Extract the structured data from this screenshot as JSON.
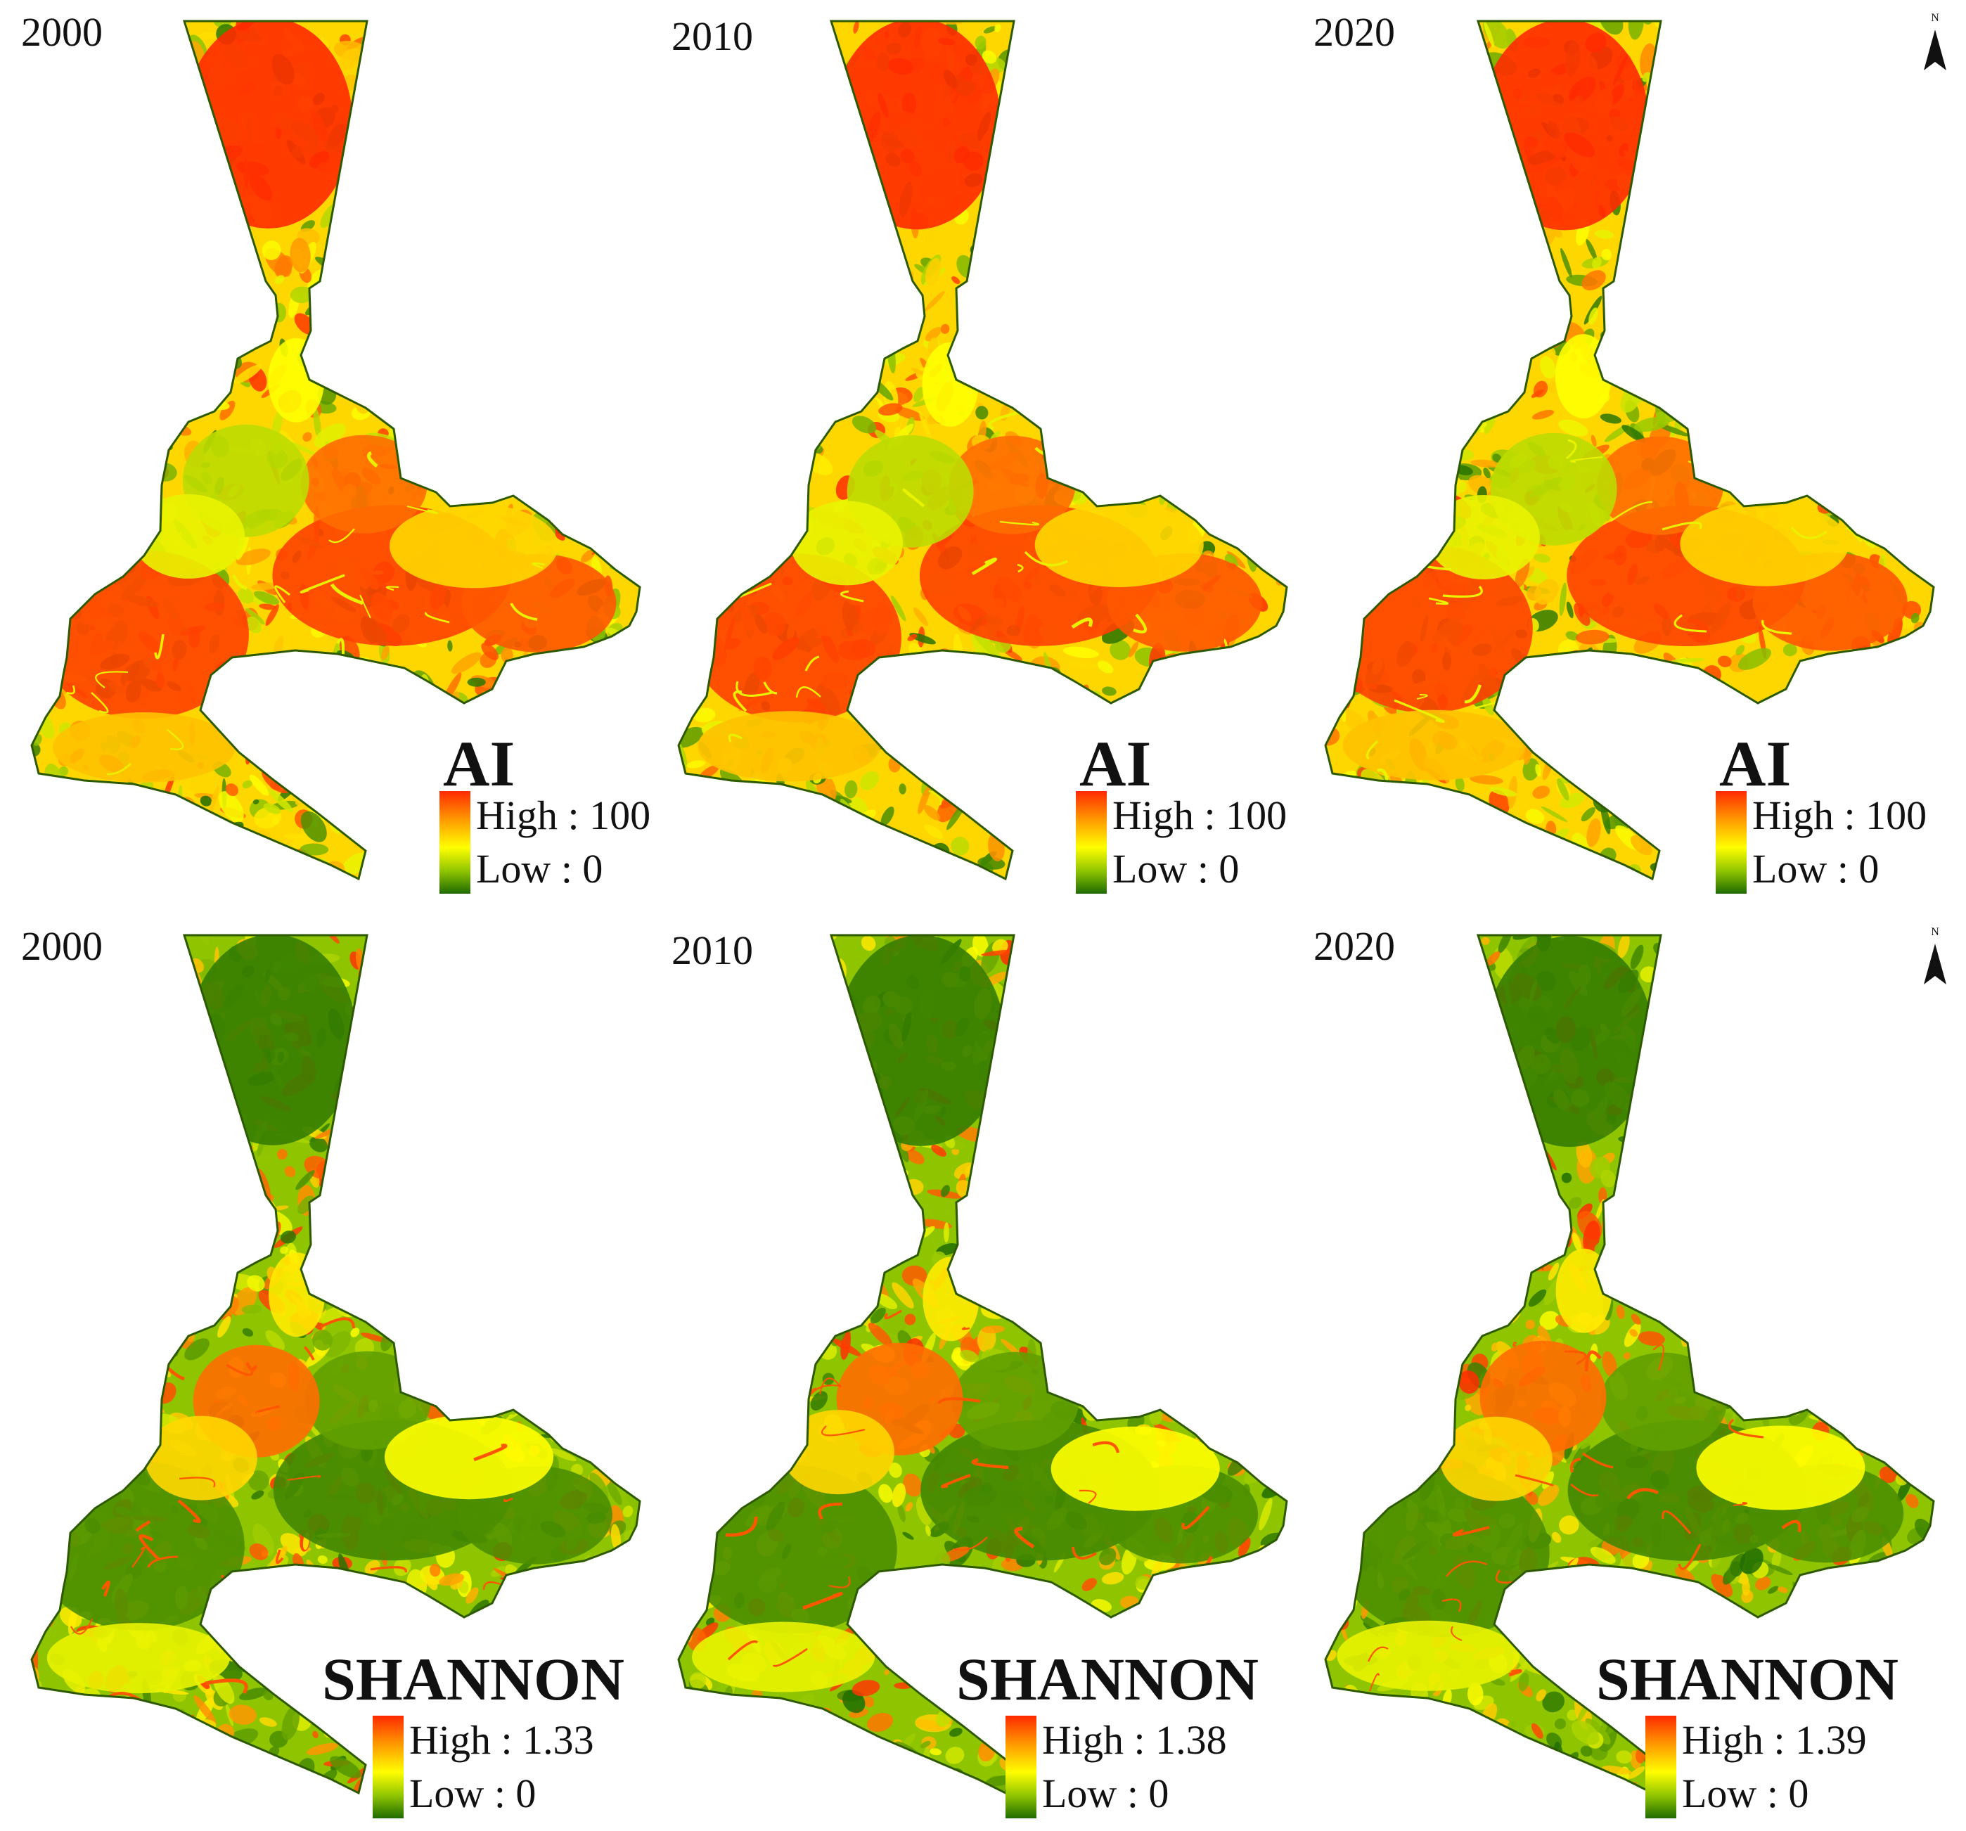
{
  "panels": [
    {
      "year": "2000",
      "metric": "AI",
      "high": "High : 100",
      "low": "Low : 0"
    },
    {
      "year": "2010",
      "metric": "AI",
      "high": "High : 100",
      "low": "Low : 0"
    },
    {
      "year": "2020",
      "metric": "AI",
      "high": "High : 100",
      "low": "Low : 0"
    },
    {
      "year": "2000",
      "metric": "SHANNON",
      "high": "High : 1.33",
      "low": "Low : 0"
    },
    {
      "year": "2010",
      "metric": "SHANNON",
      "high": "High : 1.38",
      "low": "Low : 0"
    },
    {
      "year": "2020",
      "metric": "SHANNON",
      "high": "High : 1.39",
      "low": "Low : 0"
    }
  ],
  "north_arrow_label": "N",
  "colors": {
    "high": "#ff2a00",
    "mid_high": "#ff9a00",
    "mid": "#ffff00",
    "mid_low": "#8fc400",
    "low": "#1e6b00",
    "outline": "#2d5a00"
  }
}
